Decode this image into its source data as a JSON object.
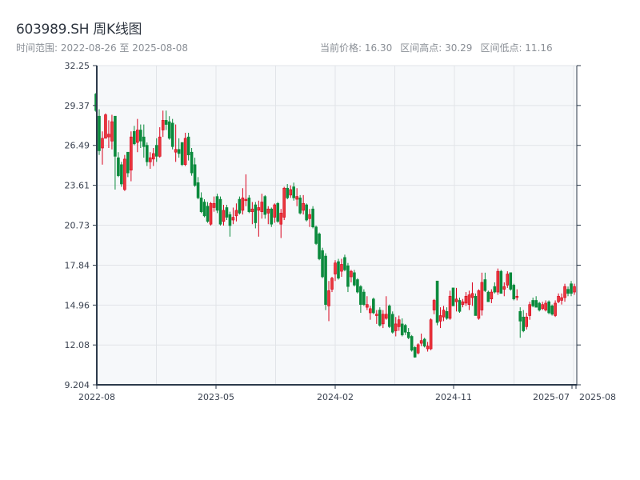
{
  "header": {
    "title": "603989.SH 周K线图",
    "range_label": "时间范围: 2022-08-26 至 2025-08-08",
    "current_price": "当前价格: 16.30",
    "period_high": "区间高点: 30.29",
    "period_low": "区间低点: 11.16"
  },
  "chart_data": {
    "type": "candlestick",
    "title": "603989.SH 周K线图",
    "xlabel": "",
    "ylabel": "",
    "ylim": [
      9.204,
      32.25
    ],
    "yticks": [
      "32.25",
      "29.37",
      "26.49",
      "23.61",
      "20.73",
      "17.84",
      "14.96",
      "12.08",
      "9.204"
    ],
    "xticks": [
      "2022-08",
      "2023-05",
      "2024-02",
      "2024-11",
      "2025-07",
      "2025-08"
    ],
    "grid": true,
    "colors": {
      "up": "#d9001b",
      "up_fill": "#e8383d",
      "down": "#0a8a3c",
      "plot_bg": "#f6f8fa",
      "grid": "#e1e4e8",
      "axis": "#2c3a4b"
    },
    "ohlc_fields": [
      "open",
      "high",
      "low",
      "close"
    ],
    "ohlc": [
      [
        30.2,
        30.29,
        28.9,
        29.0
      ],
      [
        28.6,
        29.1,
        25.8,
        26.1
      ],
      [
        26.3,
        27.5,
        25.1,
        27.0
      ],
      [
        27.0,
        28.8,
        27.0,
        28.7
      ],
      [
        27.1,
        28.3,
        26.3,
        27.3
      ],
      [
        26.8,
        28.7,
        26.2,
        28.2
      ],
      [
        28.6,
        28.6,
        23.3,
        25.7
      ],
      [
        25.6,
        26.0,
        24.2,
        24.3
      ],
      [
        25.1,
        25.3,
        23.5,
        23.7
      ],
      [
        23.3,
        25.8,
        23.2,
        25.5
      ],
      [
        26.0,
        26.0,
        24.2,
        24.5
      ],
      [
        24.7,
        27.5,
        23.9,
        27.1
      ],
      [
        27.5,
        27.9,
        26.5,
        26.6
      ],
      [
        26.7,
        28.4,
        26.0,
        27.6
      ],
      [
        27.6,
        28.0,
        26.3,
        26.8
      ],
      [
        27.1,
        28.0,
        25.6,
        26.4
      ],
      [
        26.5,
        26.7,
        25.0,
        25.3
      ],
      [
        25.3,
        26.0,
        24.8,
        25.6
      ],
      [
        25.5,
        26.3,
        25.0,
        25.9
      ],
      [
        26.5,
        27.0,
        25.3,
        25.7
      ],
      [
        25.7,
        27.8,
        25.6,
        27.1
      ],
      [
        27.6,
        29.0,
        27.1,
        28.3
      ],
      [
        28.3,
        29.0,
        27.6,
        28.0
      ],
      [
        28.2,
        28.6,
        26.9,
        27.0
      ],
      [
        28.1,
        28.4,
        26.2,
        26.4
      ],
      [
        26.0,
        28.0,
        25.3,
        26.2
      ],
      [
        26.2,
        27.0,
        25.6,
        25.9
      ],
      [
        26.7,
        26.7,
        25.0,
        25.1
      ],
      [
        25.1,
        27.4,
        25.0,
        27.0
      ],
      [
        27.1,
        27.4,
        25.4,
        25.8
      ],
      [
        26.0,
        26.3,
        24.3,
        24.5
      ],
      [
        25.1,
        25.6,
        23.5,
        23.6
      ],
      [
        23.8,
        24.2,
        22.6,
        22.7
      ],
      [
        22.7,
        23.1,
        21.6,
        21.7
      ],
      [
        22.4,
        22.6,
        21.3,
        21.4
      ],
      [
        22.1,
        22.4,
        20.9,
        21.0
      ],
      [
        20.8,
        22.4,
        20.7,
        22.3
      ],
      [
        22.0,
        22.8,
        21.7,
        22.3
      ],
      [
        22.8,
        23.0,
        21.6,
        21.8
      ],
      [
        22.6,
        22.8,
        20.7,
        20.8
      ],
      [
        21.0,
        22.2,
        20.7,
        21.8
      ],
      [
        22.0,
        22.2,
        21.1,
        21.3
      ],
      [
        21.5,
        21.7,
        19.9,
        20.7
      ],
      [
        21.1,
        22.0,
        20.8,
        21.3
      ],
      [
        21.4,
        22.3,
        21.0,
        21.8
      ],
      [
        22.6,
        22.8,
        21.5,
        21.6
      ],
      [
        21.8,
        23.4,
        21.5,
        22.7
      ],
      [
        22.5,
        24.4,
        22.1,
        22.6
      ],
      [
        22.7,
        22.9,
        21.6,
        21.7
      ],
      [
        21.7,
        22.4,
        20.8,
        21.9
      ],
      [
        22.2,
        22.4,
        20.5,
        20.9
      ],
      [
        21.8,
        22.5,
        19.9,
        22.0
      ],
      [
        21.7,
        23.0,
        21.2,
        22.4
      ],
      [
        22.8,
        22.9,
        21.2,
        21.5
      ],
      [
        21.6,
        22.1,
        20.8,
        21.9
      ],
      [
        21.9,
        22.0,
        20.6,
        20.8
      ],
      [
        21.3,
        22.3,
        20.9,
        22.2
      ],
      [
        22.3,
        22.4,
        20.9,
        21.0
      ],
      [
        20.8,
        21.9,
        19.8,
        21.6
      ],
      [
        21.3,
        23.5,
        21.1,
        23.4
      ],
      [
        23.4,
        23.7,
        22.6,
        22.7
      ],
      [
        22.9,
        23.6,
        22.7,
        23.3
      ],
      [
        23.5,
        23.8,
        22.5,
        22.7
      ],
      [
        22.6,
        23.4,
        22.1,
        22.8
      ],
      [
        22.7,
        22.9,
        21.5,
        21.6
      ],
      [
        21.8,
        22.9,
        21.5,
        22.3
      ],
      [
        22.2,
        22.3,
        21.0,
        21.1
      ],
      [
        21.2,
        21.9,
        20.6,
        21.5
      ],
      [
        21.9,
        22.1,
        20.5,
        20.6
      ],
      [
        20.6,
        20.7,
        19.3,
        19.4
      ],
      [
        20.1,
        20.2,
        18.2,
        18.3
      ],
      [
        18.9,
        19.1,
        16.9,
        17.0
      ],
      [
        18.5,
        18.7,
        14.6,
        15.0
      ],
      [
        14.9,
        16.7,
        13.8,
        16.0
      ],
      [
        16.1,
        17.0,
        15.9,
        16.9
      ],
      [
        17.2,
        18.2,
        16.7,
        18.0
      ],
      [
        18.1,
        18.3,
        16.8,
        16.9
      ],
      [
        17.4,
        18.3,
        17.0,
        17.9
      ],
      [
        18.4,
        18.6,
        17.4,
        17.5
      ],
      [
        17.8,
        18.0,
        15.9,
        16.3
      ],
      [
        17.0,
        17.5,
        16.6,
        17.4
      ],
      [
        17.3,
        17.5,
        16.3,
        16.4
      ],
      [
        16.8,
        16.9,
        15.8,
        15.9
      ],
      [
        16.3,
        16.4,
        14.4,
        15.0
      ],
      [
        15.9,
        16.1,
        14.9,
        15.0
      ],
      [
        14.8,
        15.6,
        14.6,
        15.0
      ],
      [
        14.4,
        14.9,
        13.9,
        14.7
      ],
      [
        15.4,
        15.5,
        14.3,
        14.4
      ],
      [
        14.2,
        14.6,
        13.6,
        14.3
      ],
      [
        14.6,
        14.8,
        13.4,
        13.5
      ],
      [
        13.6,
        14.6,
        13.3,
        14.3
      ],
      [
        14.0,
        15.6,
        13.9,
        14.3
      ],
      [
        14.9,
        15.0,
        13.3,
        13.4
      ],
      [
        14.3,
        14.5,
        12.9,
        13.0
      ],
      [
        13.1,
        14.1,
        12.7,
        13.6
      ],
      [
        13.4,
        14.2,
        13.1,
        13.9
      ],
      [
        13.6,
        14.0,
        12.7,
        12.8
      ],
      [
        13.5,
        13.6,
        12.8,
        13.0
      ],
      [
        13.0,
        13.3,
        12.5,
        12.6
      ],
      [
        12.7,
        12.8,
        11.6,
        11.7
      ],
      [
        11.9,
        12.0,
        11.16,
        11.2
      ],
      [
        11.5,
        12.2,
        11.4,
        12.1
      ],
      [
        12.2,
        12.9,
        12.0,
        12.4
      ],
      [
        12.5,
        12.6,
        11.9,
        12.0
      ],
      [
        11.8,
        12.3,
        11.6,
        12.0
      ],
      [
        11.8,
        14.0,
        11.7,
        13.9
      ],
      [
        14.6,
        15.4,
        14.3,
        15.3
      ],
      [
        16.7,
        16.7,
        13.5,
        13.7
      ],
      [
        13.8,
        14.8,
        13.3,
        14.2
      ],
      [
        14.1,
        14.9,
        13.8,
        14.6
      ],
      [
        14.5,
        14.8,
        13.9,
        14.0
      ],
      [
        14.0,
        16.0,
        13.9,
        15.6
      ],
      [
        16.2,
        16.2,
        14.9,
        14.9
      ],
      [
        15.2,
        16.2,
        14.5,
        15.4
      ],
      [
        15.3,
        15.5,
        14.4,
        14.5
      ],
      [
        15.0,
        15.4,
        14.8,
        15.2
      ],
      [
        15.1,
        15.9,
        14.9,
        15.6
      ],
      [
        15.0,
        16.0,
        14.6,
        15.7
      ],
      [
        15.5,
        16.6,
        14.9,
        15.8
      ],
      [
        15.6,
        15.8,
        14.2,
        14.2
      ],
      [
        14.0,
        16.1,
        13.9,
        16.0
      ],
      [
        14.6,
        17.3,
        14.2,
        16.6
      ],
      [
        16.8,
        17.3,
        15.9,
        16.0
      ],
      [
        15.9,
        16.0,
        15.2,
        15.2
      ],
      [
        15.4,
        16.1,
        15.1,
        15.9
      ],
      [
        16.3,
        16.6,
        15.8,
        15.9
      ],
      [
        15.9,
        17.6,
        15.7,
        17.4
      ],
      [
        17.4,
        17.5,
        15.8,
        15.8
      ],
      [
        16.1,
        16.6,
        15.6,
        16.3
      ],
      [
        16.4,
        17.4,
        16.2,
        17.2
      ],
      [
        17.3,
        17.3,
        16.0,
        16.1
      ],
      [
        16.4,
        16.5,
        15.3,
        15.4
      ],
      [
        15.5,
        16.1,
        15.3,
        15.6
      ],
      [
        14.5,
        14.8,
        12.6,
        13.8
      ],
      [
        14.1,
        14.6,
        13.0,
        13.1
      ],
      [
        13.4,
        14.4,
        13.2,
        14.1
      ],
      [
        14.2,
        15.2,
        13.9,
        15.0
      ],
      [
        15.3,
        15.5,
        14.8,
        14.9
      ],
      [
        15.3,
        15.6,
        14.8,
        14.8
      ],
      [
        15.1,
        15.2,
        14.5,
        14.6
      ],
      [
        14.7,
        15.2,
        14.6,
        15.0
      ],
      [
        14.6,
        15.3,
        14.5,
        15.1
      ],
      [
        15.2,
        15.3,
        14.3,
        14.4
      ],
      [
        14.9,
        15.0,
        14.2,
        14.3
      ],
      [
        14.2,
        15.3,
        14.1,
        15.1
      ],
      [
        15.2,
        15.8,
        15.1,
        15.6
      ],
      [
        15.3,
        15.8,
        15.0,
        15.5
      ],
      [
        15.5,
        16.5,
        15.2,
        16.3
      ],
      [
        16.1,
        16.3,
        15.6,
        15.8
      ],
      [
        16.5,
        16.7,
        15.6,
        15.8
      ],
      [
        15.9,
        16.5,
        15.7,
        16.3
      ]
    ]
  }
}
